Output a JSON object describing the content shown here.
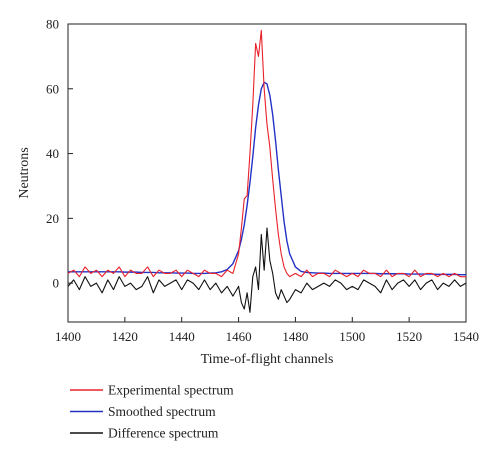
{
  "chart_data": {
    "type": "line",
    "xlabel": "Time-of-flight channels",
    "ylabel": "Neutrons",
    "xlim": [
      1400,
      1540
    ],
    "ylim": [
      -12,
      80
    ],
    "xticks": [
      1400,
      1420,
      1440,
      1460,
      1480,
      1500,
      1520,
      1540
    ],
    "yticks": [
      0,
      20,
      40,
      60,
      80
    ],
    "legend_position": "bottom-below-plot",
    "x": [
      1400,
      1402,
      1404,
      1406,
      1408,
      1410,
      1412,
      1414,
      1416,
      1418,
      1420,
      1422,
      1424,
      1426,
      1428,
      1430,
      1432,
      1434,
      1436,
      1438,
      1440,
      1442,
      1444,
      1446,
      1448,
      1450,
      1452,
      1454,
      1456,
      1458,
      1460,
      1461,
      1462,
      1463,
      1464,
      1465,
      1466,
      1467,
      1468,
      1469,
      1470,
      1471,
      1472,
      1473,
      1474,
      1475,
      1476,
      1477,
      1478,
      1480,
      1482,
      1484,
      1486,
      1488,
      1490,
      1492,
      1494,
      1496,
      1498,
      1500,
      1502,
      1504,
      1506,
      1508,
      1510,
      1512,
      1514,
      1516,
      1518,
      1520,
      1522,
      1524,
      1526,
      1528,
      1530,
      1532,
      1534,
      1536,
      1538,
      1540
    ],
    "series": [
      {
        "name": "Experimental spectrum",
        "color": "#e8202a",
        "values": [
          3,
          4,
          2,
          5,
          3,
          4,
          2,
          4,
          3,
          5,
          2,
          4,
          3,
          3,
          5,
          2,
          4,
          3,
          3,
          4,
          2,
          4,
          3,
          2,
          4,
          3,
          3,
          2,
          4,
          3,
          9,
          17,
          26,
          27,
          40,
          55,
          74,
          70,
          78,
          60,
          49,
          42,
          32,
          23,
          15,
          9,
          5,
          3,
          2,
          3,
          2,
          4,
          2,
          3,
          3,
          2,
          4,
          3,
          2,
          3,
          2,
          4,
          3,
          3,
          2,
          4,
          2,
          3,
          3,
          2,
          4,
          2,
          3,
          3,
          2,
          3,
          2,
          3,
          2,
          2
        ]
      },
      {
        "name": "Smoothed spectrum",
        "color": "#2232c6",
        "values": [
          3.5,
          3.5,
          3.5,
          3.5,
          3.5,
          3.5,
          3.5,
          3.5,
          3.5,
          3.5,
          3.4,
          3.4,
          3.4,
          3.3,
          3.3,
          3.3,
          3.2,
          3.2,
          3.2,
          3.1,
          3.1,
          3.1,
          3.0,
          3.0,
          3.0,
          3.1,
          3.2,
          3.5,
          4.2,
          6,
          10,
          13.5,
          18,
          24,
          31,
          39,
          48,
          55,
          60,
          62,
          61.5,
          58,
          52,
          44,
          35,
          27,
          19,
          13,
          9,
          5,
          3.6,
          3.3,
          3.2,
          3.1,
          3.1,
          3.0,
          3.0,
          3.0,
          3.0,
          3.0,
          3.0,
          3.0,
          3.0,
          3.0,
          2.9,
          2.9,
          2.9,
          2.9,
          2.9,
          2.8,
          2.8,
          2.8,
          2.8,
          2.8,
          2.7,
          2.7,
          2.7,
          2.7,
          2.6,
          2.6
        ]
      },
      {
        "name": "Difference spectrum",
        "color": "#111111",
        "values": [
          -1,
          1,
          -2,
          2,
          -1,
          0,
          -3,
          1,
          -2,
          2,
          -1,
          0,
          -2,
          -1,
          2,
          -3,
          1,
          -1,
          0,
          1,
          -2,
          1,
          0,
          -2,
          1,
          -2,
          0,
          -3,
          -1,
          -4,
          -1,
          -6,
          -8,
          -3,
          -9,
          2,
          5,
          -2,
          15,
          4,
          17,
          7,
          3,
          -3,
          -5,
          -2,
          -4,
          -6,
          -5,
          -2,
          -3,
          0,
          -2,
          -1,
          0,
          -1,
          1,
          0,
          -2,
          -1,
          -2,
          1,
          0,
          -1,
          -3,
          1,
          -2,
          0,
          1,
          -1,
          1,
          -2,
          0,
          1,
          -2,
          0,
          -1,
          1,
          -1,
          0
        ]
      }
    ]
  }
}
